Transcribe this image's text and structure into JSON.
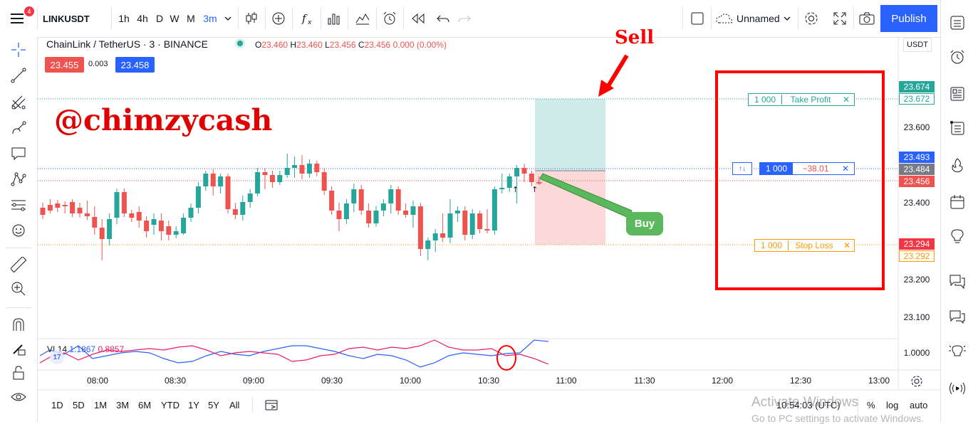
{
  "topbar": {
    "menu_badge": "4",
    "symbol": "LINKUSDT",
    "intervals": [
      "1h",
      "4h",
      "D",
      "W",
      "M",
      "3m"
    ],
    "active_interval": "3m",
    "layout_name": "Unnamed",
    "publish_label": "Publish"
  },
  "legend": {
    "title": "ChainLink / TetherUS · 3 · BINANCE",
    "o_label": "O",
    "o_value": "23.460",
    "h_label": "H",
    "h_value": "23.460",
    "l_label": "L",
    "l_value": "23.456",
    "c_label": "C",
    "c_value": "23.456",
    "change": "0.000 (0.00%)",
    "sell_price": "23.455",
    "spread": "0.003",
    "buy_price": "23.458"
  },
  "watermark": "@chimzycash",
  "annotations": {
    "sell": "Sell",
    "buy": "Buy"
  },
  "orders": {
    "take_profit": {
      "qty": "1 000",
      "label": "Take Profit",
      "close": "✕"
    },
    "position": {
      "arrows": "↑↓",
      "qty": "1 000",
      "pnl": "−38.01",
      "close": "✕"
    },
    "stop_loss": {
      "qty": "1 000",
      "label": "Stop Loss",
      "close": "✕"
    }
  },
  "price_axis": {
    "currency": "USDT",
    "ticks": [
      "23.600",
      "23.400",
      "23.200",
      "23.100",
      "1.0000"
    ],
    "labels": {
      "tp_top": "23.674",
      "tp_bottom": "23.672",
      "blue": "23.493",
      "last": "23.484",
      "red": "23.456",
      "sl_top": "23.294",
      "sl_bottom": "23.292"
    }
  },
  "time_axis": [
    "08:00",
    "08:30",
    "09:00",
    "09:30",
    "10:00",
    "10:30",
    "11:00",
    "11:30",
    "12:00",
    "12:30",
    "13:00"
  ],
  "indicator": {
    "name": "VI",
    "period": "14",
    "plus": "1.1867",
    "minus": "0.8857"
  },
  "bottombar": {
    "ranges": [
      "1D",
      "5D",
      "1M",
      "3M",
      "6M",
      "YTD",
      "1Y",
      "5Y",
      "All"
    ],
    "clock": "10:54:03 (UTC)",
    "percent": "%",
    "log": "log",
    "auto": "auto"
  },
  "activation": {
    "line1": "Activate Windows",
    "line2": "Go to PC settings to activate Windows."
  },
  "colors": {
    "up": "#26a69a",
    "down": "#ef5350",
    "accent": "#2962ff",
    "highlight_red": "#ff0000",
    "vi_plus": "#2962ff",
    "vi_minus": "#e91e63",
    "stop_loss": "#ff9800"
  }
}
